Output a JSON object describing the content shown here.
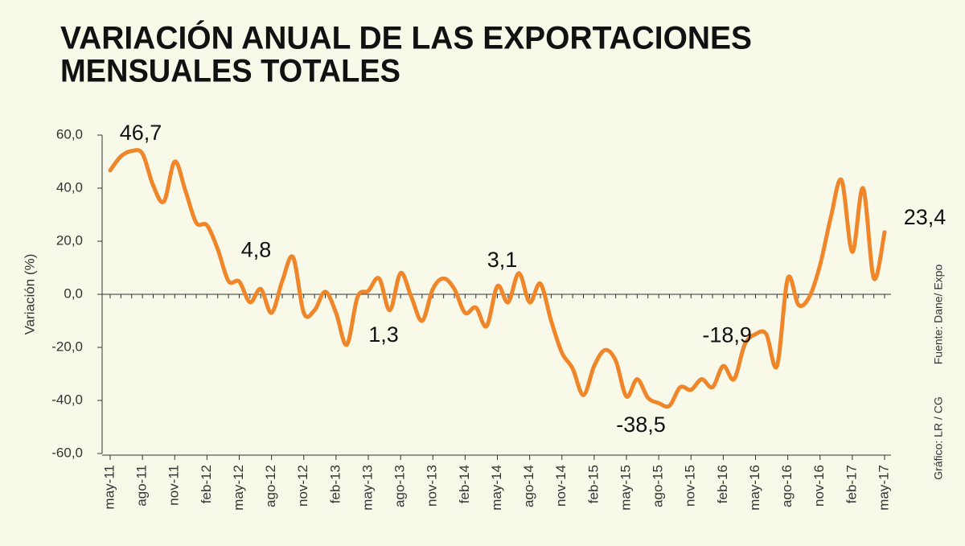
{
  "chart_data": {
    "type": "line",
    "title": [
      "VARIACIÓN ANUAL DE LAS EXPORTACIONES",
      "MENSUALES TOTALES"
    ],
    "y_label": "Variación (%)",
    "source": "Fuente: Dane/ Expo",
    "credit": "Gráfico: LR / CG",
    "categories": [
      "may-11",
      null,
      null,
      "ago-11",
      null,
      null,
      "nov-11",
      null,
      null,
      "feb-12",
      null,
      null,
      "may-12",
      null,
      null,
      "ago-12",
      null,
      null,
      "nov-12",
      null,
      null,
      "feb-13",
      null,
      null,
      "may-13",
      null,
      null,
      "ago-13",
      null,
      null,
      "nov-13",
      null,
      null,
      "feb-14",
      null,
      null,
      "may-14",
      null,
      null,
      "ago-14",
      null,
      null,
      "nov-14",
      null,
      null,
      "feb-15",
      null,
      null,
      "may-15",
      null,
      null,
      "ago-15",
      null,
      null,
      "nov-15",
      null,
      null,
      "feb-16",
      null,
      null,
      "may-16",
      null,
      null,
      "ago-16",
      null,
      null,
      "nov-16",
      null,
      null,
      "feb-17",
      null,
      null,
      "may-17"
    ],
    "series": [
      {
        "name": "Variación anual",
        "color": "#f0862a",
        "values": [
          46.7,
          52,
          54,
          53,
          41,
          35,
          50,
          39,
          27,
          26,
          17,
          5,
          4.8,
          -3,
          2,
          -7,
          5,
          14,
          -7,
          -6,
          1,
          -7,
          -19,
          -1,
          1.3,
          6,
          -6,
          8,
          -1,
          -10,
          2,
          6,
          2,
          -7,
          -5,
          -12,
          3.1,
          -3,
          8,
          -3,
          4,
          -10,
          -22,
          -28,
          -38,
          -27,
          -21,
          -25,
          -38.5,
          -32,
          -39,
          -41,
          -42,
          -35,
          -36,
          -32,
          -35,
          -27,
          -32,
          -18.9,
          -15,
          -15,
          -27,
          6,
          -4,
          -1,
          11,
          29,
          43,
          16,
          40,
          6,
          23.4
        ],
        "value_labels": [
          "46,7",
          null,
          null,
          null,
          null,
          null,
          null,
          null,
          null,
          null,
          null,
          null,
          "4,8",
          null,
          null,
          null,
          null,
          null,
          null,
          null,
          null,
          null,
          null,
          null,
          "1,3",
          null,
          null,
          null,
          null,
          null,
          null,
          null,
          null,
          null,
          null,
          null,
          "3,1",
          null,
          null,
          null,
          null,
          null,
          null,
          null,
          null,
          null,
          null,
          null,
          "-38,5",
          null,
          null,
          null,
          null,
          null,
          null,
          null,
          null,
          null,
          null,
          "-18,9",
          null,
          null,
          null,
          null,
          null,
          null,
          null,
          null,
          null,
          null,
          null,
          null,
          "23,4"
        ]
      }
    ],
    "ylim": [
      -60,
      60
    ],
    "yticks": [
      {
        "value": -60,
        "label": "-60,0"
      },
      {
        "value": -40,
        "label": "-40,0"
      },
      {
        "value": -20,
        "label": "-20,0"
      },
      {
        "value": 0,
        "label": "0,0"
      },
      {
        "value": 20,
        "label": "20,0"
      },
      {
        "value": 40,
        "label": "40,0"
      },
      {
        "value": 60,
        "label": "60,0"
      }
    ]
  }
}
